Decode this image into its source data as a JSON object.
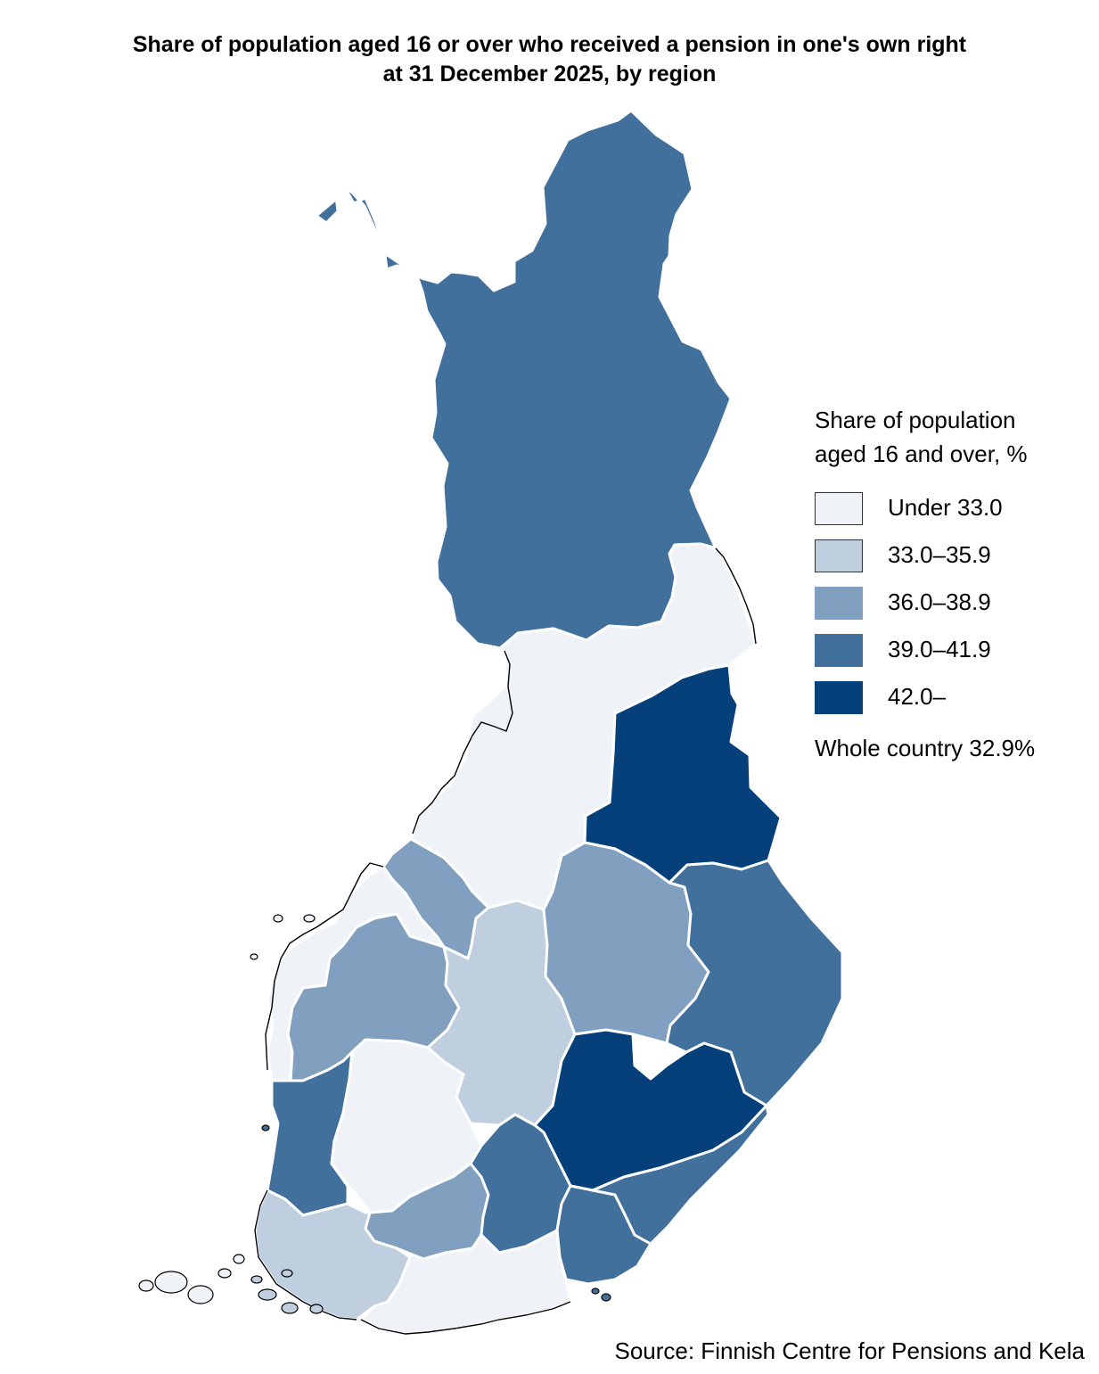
{
  "title": {
    "line1": "Share of population aged 16 or over who received a pension in one's own right",
    "line2": "at 31 December 2025, by region"
  },
  "legend": {
    "title_line1": "Share of population",
    "title_line2": "aged 16 and over, %",
    "classes": [
      {
        "label": "Under 33.0",
        "color": "#eff3f7"
      },
      {
        "label": "33.0–35.9",
        "color": "#bfcfdf"
      },
      {
        "label": "36.0–38.9",
        "color": "#819fbf"
      },
      {
        "label": "39.0–41.9",
        "color": "#42709c"
      },
      {
        "label": "42.0–",
        "color": "#05407a"
      }
    ],
    "whole_country": "Whole country 32.9%"
  },
  "source": "Source: Finnish Centre for Pensions and Kela",
  "regions": [
    {
      "id": "lapland",
      "class": "39.0–41.9"
    },
    {
      "id": "north-ostrobothnia",
      "class": "Under 33.0"
    },
    {
      "id": "kainuu",
      "class": "42.0–"
    },
    {
      "id": "central-ostrobothnia",
      "class": "36.0–38.9"
    },
    {
      "id": "ostrobothnia",
      "class": "Under 33.0"
    },
    {
      "id": "south-ostrobothnia",
      "class": "36.0–38.9"
    },
    {
      "id": "central-finland",
      "class": "33.0–35.9"
    },
    {
      "id": "north-savo",
      "class": "36.0–38.9"
    },
    {
      "id": "north-karelia",
      "class": "39.0–41.9"
    },
    {
      "id": "satakunta",
      "class": "39.0–41.9"
    },
    {
      "id": "pirkanmaa",
      "class": "Under 33.0"
    },
    {
      "id": "south-savo",
      "class": "42.0–"
    },
    {
      "id": "kanta-hame",
      "class": "36.0–38.9"
    },
    {
      "id": "paijat-hame",
      "class": "39.0–41.9"
    },
    {
      "id": "kymenlaakso",
      "class": "39.0–41.9"
    },
    {
      "id": "south-karelia",
      "class": "39.0–41.9"
    },
    {
      "id": "southwest-finland",
      "class": "33.0–35.9"
    },
    {
      "id": "uusimaa",
      "class": "Under 33.0"
    }
  ]
}
